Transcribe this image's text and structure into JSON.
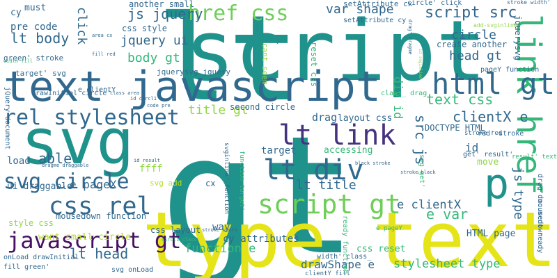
{
  "words": [
    {
      "text": "gt",
      "color": "#20928c"
    },
    {
      "text": "lt",
      "color": "#20928c"
    },
    {
      "text": "script",
      "color": "#20928c"
    },
    {
      "text": "type text",
      "color": "#e5e419"
    },
    {
      "text": "text javascript",
      "color": "#31688e"
    },
    {
      "text": "svg",
      "color": "#20928c"
    },
    {
      "text": "lt link",
      "color": "#46337e"
    },
    {
      "text": "lt div",
      "color": "#31688e"
    },
    {
      "text": "p",
      "color": "#20928c"
    },
    {
      "text": "link href",
      "color": "#35b779"
    },
    {
      "text": "html gt",
      "color": "#31688e"
    },
    {
      "text": "href css",
      "color": "#6ece58"
    },
    {
      "text": "script gt",
      "color": "#6ece58"
    },
    {
      "text": "rel stylesheet",
      "color": "#31688e"
    },
    {
      "text": "svg circle",
      "color": "#31688e"
    },
    {
      "text": "css rel",
      "color": "#31688e"
    },
    {
      "text": "javascript gt",
      "color": "#471063"
    },
    {
      "text": "script src",
      "color": "#31688e"
    },
    {
      "text": "js jquery",
      "color": "#31688e"
    },
    {
      "text": "jquery ui",
      "color": "#31688e"
    },
    {
      "text": "body gt",
      "color": "#35b779"
    },
    {
      "text": "title gt",
      "color": "#90d743"
    },
    {
      "text": "text css",
      "color": "#35b779"
    },
    {
      "text": "var shape",
      "color": "#31688e"
    },
    {
      "text": "head gt",
      "color": "#31688e"
    },
    {
      "text": "circle",
      "color": "#31688e"
    },
    {
      "text": "clientX e",
      "color": "#31688e"
    },
    {
      "text": "js type",
      "color": "#31688e"
    },
    {
      "text": "jquerysvg",
      "color": "#31688e"
    },
    {
      "text": "lt body",
      "color": "#31688e"
    },
    {
      "text": "pre code",
      "color": "#31688e"
    },
    {
      "text": "cy",
      "color": "#31688e"
    },
    {
      "text": "must",
      "color": "#31688e"
    },
    {
      "text": "another small",
      "color": "#31688e"
    },
    {
      "text": "click",
      "color": "#31688e"
    },
    {
      "text": "css style",
      "color": "#31688e"
    },
    {
      "text": "cant seem",
      "color": "#90d743"
    },
    {
      "text": "reset css",
      "color": "#35b779"
    },
    {
      "text": "create another",
      "color": "#31688e"
    },
    {
      "text": "DOCTYPE HTML",
      "color": "#31688e"
    },
    {
      "text": "second circle",
      "color": "#31688e"
    },
    {
      "text": "drag",
      "color": "#31688e"
    },
    {
      "text": "layout css",
      "color": "#31688e"
    },
    {
      "text": "div id",
      "color": "#35b779"
    },
    {
      "text": "src js",
      "color": "#31688e"
    },
    {
      "text": "target",
      "color": "#31688e"
    },
    {
      "text": "accessing",
      "color": "#35b779"
    },
    {
      "text": "lt title",
      "color": "#31688e"
    },
    {
      "text": "e pageX",
      "color": "#31688e"
    },
    {
      "text": "able",
      "color": "#31688e"
    },
    {
      "text": "load",
      "color": "#31688e"
    },
    {
      "text": "e clientX",
      "color": "#31688e"
    },
    {
      "text": "e var",
      "color": "#35b779"
    },
    {
      "text": "move",
      "color": "#90d743"
    },
    {
      "text": "HTML page",
      "color": "#31688e"
    },
    {
      "text": "lt head",
      "color": "#31688e"
    },
    {
      "text": "function e",
      "color": "#35b779"
    },
    {
      "text": "drawShape e",
      "color": "#31688e"
    },
    {
      "text": "stylesheet type",
      "color": "#35b779"
    },
    {
      "text": "css reset",
      "color": "#35b779"
    },
    {
      "text": "css layout",
      "color": "#31688e"
    },
    {
      "text": "cy attributes",
      "color": "#31688e"
    },
    {
      "text": "want small circle",
      "color": "#b5de2b"
    },
    {
      "text": "mousedown function",
      "color": "#31688e"
    },
    {
      "text": "style css",
      "color": "#90d743"
    },
    {
      "text": "ui draggable",
      "color": "#31688e"
    },
    {
      "text": "svg add",
      "color": "#b5de2b"
    },
    {
      "text": "ffff",
      "color": "#90d743"
    },
    {
      "text": "way",
      "color": "#31688e"
    },
    {
      "text": "cx",
      "color": "#31688e"
    },
    {
      "text": "jquerysvg jquery",
      "color": "#31688e"
    },
    {
      "text": "drawInitial circle'",
      "color": "#31688e"
    },
    {
      "text": "target' svg",
      "color": "#31688e"
    },
    {
      "text": "e clientY",
      "color": "#31688e"
    },
    {
      "text": "green' stroke",
      "color": "#31688e"
    },
    {
      "text": "jQuery document",
      "color": "#31688e"
    },
    {
      "text": "onLoad drawInitial",
      "color": "#31688e"
    },
    {
      "text": "fill green'",
      "color": "#31688e"
    },
    {
      "text": "svg onLoad",
      "color": "#31688e"
    },
    {
      "text": "setAttribute cx",
      "color": "#31688e"
    },
    {
      "text": "circle' click",
      "color": "#31688e"
    },
    {
      "text": "stroke width'",
      "color": "#31688e"
    },
    {
      "text": "add-svginline'",
      "color": "#90d743"
    },
    {
      "text": "pageY function",
      "color": "#31688e"
    },
    {
      "text": "red' stroke",
      "color": "#31688e"
    },
    {
      "text": "stroke red",
      "color": "#31688e"
    },
    {
      "text": "result' text",
      "color": "#35b779"
    },
    {
      "text": "document ready",
      "color": "#31688e"
    },
    {
      "text": "drag' mousedown",
      "color": "#31688e"
    },
    {
      "text": "class_ drag",
      "color": "#35b779"
    },
    {
      "text": "width' class_",
      "color": "#31688e"
    },
    {
      "text": "clientY fill",
      "color": "#31688e"
    },
    {
      "text": "e pageY",
      "color": "#35b779"
    },
    {
      "text": "ready function",
      "color": "#35b779"
    },
    {
      "text": "svginline' function",
      "color": "#31688e"
    },
    {
      "text": "function target'",
      "color": "#35b779"
    },
    {
      "text": "id",
      "color": "#31688e"
    },
    {
      "text": "get' result'",
      "color": "#31688e"
    },
    {
      "text": "svg get'",
      "color": "#35b779"
    },
    {
      "text": "setAttribute cy",
      "color": "#31688e"
    },
    {
      "text": "id result",
      "color": "#31688e"
    },
    {
      "text": "dragme draggable",
      "color": "#31688e"
    },
    {
      "text": "stroke width",
      "color": "#31688e"
    },
    {
      "text": "black stroke",
      "color": "#31688e"
    },
    {
      "text": "stroke black",
      "color": "#31688e"
    },
    {
      "text": "circl1 class",
      "color": "#35b779"
    },
    {
      "text": "code pre",
      "color": "#31688e"
    },
    {
      "text": "id circl1",
      "color": "#31688e"
    },
    {
      "text": "class area",
      "color": "#31688e"
    },
    {
      "text": "area cx",
      "color": "#31688e"
    },
    {
      "text": "fill red",
      "color": "#31688e"
    },
    {
      "text": "width fill",
      "color": "#35b779"
    },
    {
      "text": "drag' dragme",
      "color": "#31688e"
    },
    {
      "text": "id svginline",
      "color": "#90d743"
    }
  ]
}
